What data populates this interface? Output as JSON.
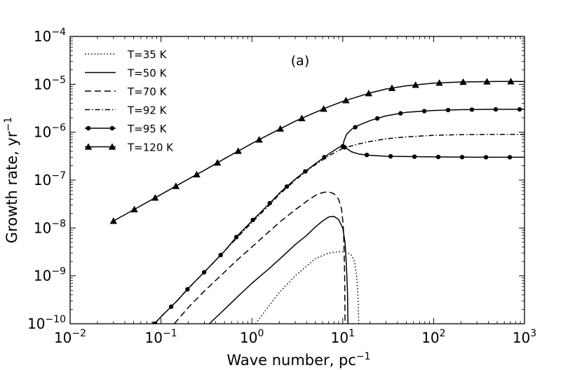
{
  "chart_data": {
    "type": "line",
    "panel_label": "(a)",
    "xlabel": "Wave number, pc",
    "xlabel_sup": "−1",
    "ylabel": "Growth rate, yr",
    "ylabel_sup": "−1",
    "xscale": "log",
    "yscale": "log",
    "xlim": [
      0.01,
      1000
    ],
    "ylim": [
      1e-10,
      0.0001
    ],
    "xticks": [
      {
        "base": "10",
        "exp": "−2"
      },
      {
        "base": "10",
        "exp": "−1"
      },
      {
        "base": "10",
        "exp": "0"
      },
      {
        "base": "10",
        "exp": "1"
      },
      {
        "base": "10",
        "exp": "2"
      },
      {
        "base": "10",
        "exp": "3"
      }
    ],
    "yticks": [
      {
        "base": "10",
        "exp": "−10"
      },
      {
        "base": "10",
        "exp": "−9"
      },
      {
        "base": "10",
        "exp": "−8"
      },
      {
        "base": "10",
        "exp": "−7"
      },
      {
        "base": "10",
        "exp": "−6"
      },
      {
        "base": "10",
        "exp": "−5"
      },
      {
        "base": "10",
        "exp": "−4"
      }
    ],
    "legend_position": "top-left",
    "series": [
      {
        "name": "T=35 K",
        "style": "dotted",
        "marker": "none",
        "points": [
          [
            1.1,
            1e-10
          ],
          [
            1.5,
            2.2e-10
          ],
          [
            2,
            4.5e-10
          ],
          [
            3,
            1e-09
          ],
          [
            5,
            2.3e-09
          ],
          [
            7,
            3e-09
          ],
          [
            9,
            3.2e-09
          ],
          [
            11,
            3.1e-09
          ],
          [
            12.5,
            2.7e-09
          ],
          [
            13.5,
            2e-09
          ],
          [
            14.2,
            1e-09
          ],
          [
            14.7,
            4e-10
          ],
          [
            15,
            1e-10
          ]
        ]
      },
      {
        "name": "T=50 K",
        "style": "solid",
        "marker": "none",
        "points": [
          [
            0.34,
            1e-10
          ],
          [
            0.5,
            2e-10
          ],
          [
            0.7,
            3.7e-10
          ],
          [
            1,
            7e-10
          ],
          [
            1.5,
            1.35e-09
          ],
          [
            2,
            2.2e-09
          ],
          [
            3,
            4.5e-09
          ],
          [
            4,
            7e-09
          ],
          [
            5,
            1.05e-08
          ],
          [
            6,
            1.4e-08
          ],
          [
            7,
            1.7e-08
          ],
          [
            8,
            1.75e-08
          ],
          [
            9,
            1.5e-08
          ],
          [
            10,
            1e-08
          ],
          [
            10.6,
            5e-09
          ],
          [
            10.9,
            2e-09
          ],
          [
            11.1,
            1e-09
          ],
          [
            11.3,
            4e-10
          ],
          [
            11.4,
            1e-10
          ]
        ]
      },
      {
        "name": "T=70 K",
        "style": "dashed",
        "marker": "none",
        "points": [
          [
            0.14,
            1e-10
          ],
          [
            0.2,
            2.2e-10
          ],
          [
            0.3,
            4.8e-10
          ],
          [
            0.5,
            1.2e-09
          ],
          [
            0.7,
            2.2e-09
          ],
          [
            1,
            4e-09
          ],
          [
            1.5,
            8e-09
          ],
          [
            2,
            1.3e-08
          ],
          [
            3,
            2.4e-08
          ],
          [
            4,
            3.6e-08
          ],
          [
            5,
            4.8e-08
          ],
          [
            6,
            5.5e-08
          ],
          [
            7,
            5.7e-08
          ],
          [
            8,
            5.2e-08
          ],
          [
            9,
            4e-08
          ],
          [
            9.7,
            2.5e-08
          ],
          [
            10.1,
            1.2e-08
          ],
          [
            10.3,
            5e-09
          ],
          [
            10.5,
            1e-09
          ],
          [
            10.6,
            1e-10
          ]
        ]
      },
      {
        "name": "T=92 K",
        "style": "dashdot",
        "marker": "none",
        "points": [
          [
            0.085,
            1e-10
          ],
          [
            0.1,
            1.4e-10
          ],
          [
            0.15,
            3e-10
          ],
          [
            0.2,
            5.5e-10
          ],
          [
            0.3,
            1.2e-09
          ],
          [
            0.5,
            3.3e-09
          ],
          [
            0.7,
            6.5e-09
          ],
          [
            1,
            1.3e-08
          ],
          [
            1.5,
            2.8e-08
          ],
          [
            2,
            5e-08
          ],
          [
            3,
            1e-07
          ],
          [
            4,
            1.55e-07
          ],
          [
            5,
            2.1e-07
          ],
          [
            7,
            3.2e-07
          ],
          [
            10,
            4.6e-07
          ],
          [
            15,
            5.7e-07
          ],
          [
            20,
            6.4e-07
          ],
          [
            30,
            7.3e-07
          ],
          [
            50,
            8e-07
          ],
          [
            100,
            8.6e-07
          ],
          [
            200,
            8.9e-07
          ],
          [
            500,
            9e-07
          ],
          [
            1000,
            9e-07
          ]
        ]
      },
      {
        "name": "T=95 K",
        "style": "solid",
        "marker": "circle",
        "points": [
          [
            0.085,
            1e-10
          ],
          [
            0.1,
            1.4e-10
          ],
          [
            0.15,
            3e-10
          ],
          [
            0.2,
            5.5e-10
          ],
          [
            0.3,
            1.2e-09
          ],
          [
            0.5,
            3.3e-09
          ],
          [
            0.7,
            7e-09
          ],
          [
            1,
            1.4e-08
          ],
          [
            1.5,
            3e-08
          ],
          [
            2,
            5.3e-08
          ],
          [
            3,
            1.05e-07
          ],
          [
            5,
            2.2e-07
          ],
          [
            7,
            3.5e-07
          ],
          [
            9,
            4.8e-07
          ],
          [
            10,
            5.1e-07
          ],
          [
            11,
            4.6e-07
          ],
          [
            12.5,
            3.9e-07
          ],
          [
            15,
            3.5e-07
          ],
          [
            20,
            3.3e-07
          ],
          [
            30,
            3.15e-07
          ],
          [
            50,
            3.1e-07
          ],
          [
            100,
            3.05e-07
          ],
          [
            300,
            3e-07
          ],
          [
            1000,
            3e-07
          ]
        ],
        "upper_branch": [
          [
            10,
            5.1e-07
          ],
          [
            10.3,
            6.5e-07
          ],
          [
            11,
            9e-07
          ],
          [
            12.5,
            1.15e-06
          ],
          [
            15,
            1.4e-06
          ],
          [
            20,
            1.75e-06
          ],
          [
            30,
            2.2e-06
          ],
          [
            50,
            2.6e-06
          ],
          [
            100,
            2.85e-06
          ],
          [
            200,
            2.95e-06
          ],
          [
            500,
            3e-06
          ],
          [
            1000,
            3e-06
          ]
        ]
      },
      {
        "name": "T=120 K",
        "style": "solid",
        "marker": "triangle",
        "points": [
          [
            0.03,
            1.4e-08
          ],
          [
            0.05,
            2.4e-08
          ],
          [
            0.1,
            5e-08
          ],
          [
            0.2,
            1.05e-07
          ],
          [
            0.3,
            1.6e-07
          ],
          [
            0.5,
            2.8e-07
          ],
          [
            0.7,
            4e-07
          ],
          [
            1,
            5.8e-07
          ],
          [
            1.5,
            8.7e-07
          ],
          [
            2,
            1.15e-06
          ],
          [
            3,
            1.7e-06
          ],
          [
            5,
            2.6e-06
          ],
          [
            7,
            3.4e-06
          ],
          [
            10,
            4.4e-06
          ],
          [
            15,
            5.6e-06
          ],
          [
            20,
            6.6e-06
          ],
          [
            30,
            8e-06
          ],
          [
            50,
            9.3e-06
          ],
          [
            100,
            1.06e-05
          ],
          [
            200,
            1.12e-05
          ],
          [
            500,
            1.15e-05
          ],
          [
            1000,
            1.15e-05
          ]
        ]
      }
    ]
  }
}
